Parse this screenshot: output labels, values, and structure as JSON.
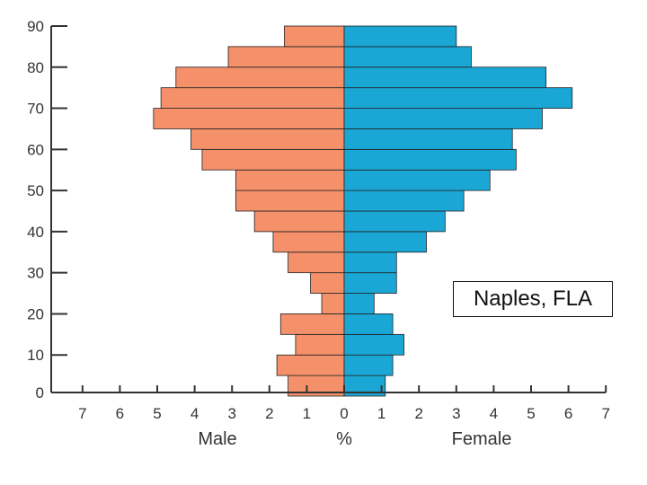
{
  "chart_data": {
    "type": "bar",
    "orientation": "horizontal-population-pyramid",
    "annotation": "Naples, FLA",
    "xlabel": "%",
    "left_label": "Male",
    "right_label": "Female",
    "y_ticks": [
      "0",
      "10",
      "20",
      "30",
      "40",
      "50",
      "60",
      "70",
      "80",
      "90"
    ],
    "x_ticks_male": [
      "7",
      "6",
      "5",
      "4",
      "3",
      "2",
      "1"
    ],
    "x_ticks_female": [
      "1",
      "2",
      "3",
      "4",
      "5",
      "6",
      "7"
    ],
    "x_tick_zero": "0",
    "xlim": [
      -7,
      7
    ],
    "ylim": [
      0,
      90
    ],
    "age_group_size": 5,
    "categories": [
      "0-4",
      "5-9",
      "10-14",
      "15-19",
      "20-24",
      "25-29",
      "30-34",
      "35-39",
      "40-44",
      "45-49",
      "50-54",
      "55-59",
      "60-64",
      "65-69",
      "70-74",
      "75-79",
      "80-84",
      "85+"
    ],
    "series": [
      {
        "name": "Male",
        "color": "#F4906A",
        "values": [
          1.5,
          1.8,
          1.3,
          1.7,
          0.6,
          0.9,
          1.5,
          1.9,
          2.4,
          2.9,
          2.9,
          3.8,
          4.1,
          5.1,
          4.9,
          4.5,
          3.1,
          1.6
        ]
      },
      {
        "name": "Female",
        "color": "#1AA7D6",
        "values": [
          1.1,
          1.3,
          1.6,
          1.3,
          0.8,
          1.4,
          1.4,
          2.2,
          2.7,
          3.2,
          3.9,
          4.6,
          4.5,
          5.3,
          6.1,
          5.4,
          3.4,
          3.0
        ]
      }
    ]
  }
}
